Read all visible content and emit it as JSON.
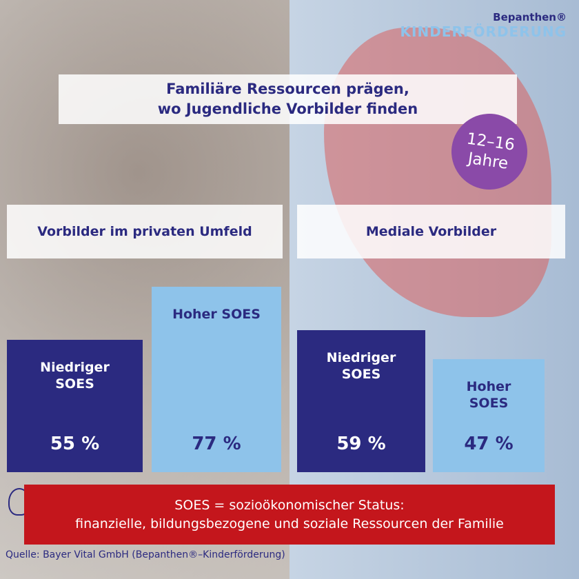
{
  "header": {
    "title": [
      "Familiäre Ressourcen prägen,",
      "wo Jugendliche Vorbilder finden"
    ]
  },
  "badge": [
    "12–16",
    "Jahre"
  ],
  "logo": {
    "brand": "Bepanthen®",
    "program": "KINDERFÖRDERUNG"
  },
  "chart_data": [
    {
      "type": "bar",
      "title": "Vorbilder im privaten Umfeld",
      "categories": [
        "Niedriger SOES",
        "Hoher SOES"
      ],
      "values": [
        55,
        77
      ],
      "value_labels": [
        "55 %",
        "77 %"
      ],
      "colors": [
        "#2b2a80",
        "#8ec3ea"
      ],
      "ylim": [
        0,
        100
      ]
    },
    {
      "type": "bar",
      "title": "Mediale Vorbilder",
      "categories": [
        "Niedriger SOES",
        "Hoher SOES"
      ],
      "values": [
        59,
        47
      ],
      "value_labels": [
        "59 %",
        "47 %"
      ],
      "colors": [
        "#2b2a80",
        "#8ec3ea"
      ],
      "ylim": [
        0,
        100
      ]
    }
  ],
  "note": [
    "SOES = sozioökonomischer Status:",
    "finanzielle, bildungsbezogene und soziale Ressourcen der Familie"
  ],
  "source": "Quelle: Bayer Vital GmbH (Bepanthen®–Kinderförderung)"
}
